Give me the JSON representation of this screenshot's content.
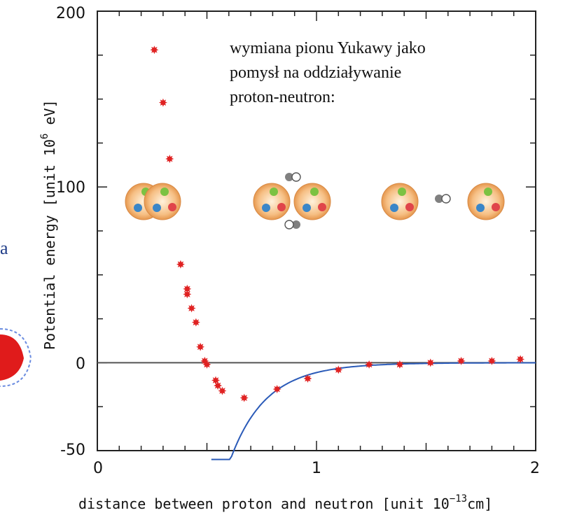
{
  "chart_data": {
    "type": "scatter",
    "title": "",
    "xlabel": "distance between proton and neutron [unit 10",
    "xlabel_exp": "−13",
    "xlabel_tail": "cm]",
    "ylabel": "Potential energy  [unit 10",
    "ylabel_exp": "6",
    "ylabel_tail": " eV]",
    "xlim": [
      0,
      2
    ],
    "ylim": [
      -50,
      200
    ],
    "x_ticks": [
      "0",
      "1",
      "2"
    ],
    "y_ticks": [
      "200",
      "100",
      "0",
      "-50"
    ],
    "grid": false,
    "series": [
      {
        "kind": "points",
        "color": "#e02222",
        "points": [
          [
            0.26,
            178
          ],
          [
            0.3,
            148
          ],
          [
            0.33,
            116
          ],
          [
            0.38,
            56
          ],
          [
            0.41,
            42
          ],
          [
            0.41,
            39
          ],
          [
            0.43,
            31
          ],
          [
            0.45,
            23
          ],
          [
            0.47,
            9
          ],
          [
            0.49,
            1
          ],
          [
            0.5,
            -1
          ],
          [
            0.54,
            -10
          ],
          [
            0.55,
            -13
          ],
          [
            0.57,
            -16
          ],
          [
            0.67,
            -20
          ],
          [
            0.82,
            -15
          ],
          [
            0.96,
            -9
          ],
          [
            1.1,
            -4
          ],
          [
            1.24,
            -1
          ],
          [
            1.38,
            -1
          ],
          [
            1.52,
            0
          ],
          [
            1.66,
            1
          ],
          [
            1.8,
            1
          ],
          [
            1.93,
            2
          ]
        ]
      },
      {
        "kind": "curve",
        "color": "#2a5ab8",
        "x_start": 0.52,
        "x_end": 2.0
      }
    ],
    "reference_line": {
      "y": 0,
      "color": "#555555"
    },
    "annotation": [
      "wymiana pionu Yukawy jako",
      "pomysł na oddziaływanie",
      "proton-neutron:"
    ],
    "side_fragment": "a",
    "colors": {
      "nucleon": "#f0a868",
      "quark_green": "#7cc242",
      "quark_blue": "#3a86c8",
      "quark_red": "#e0454a",
      "pion_dark": "#808080"
    }
  }
}
